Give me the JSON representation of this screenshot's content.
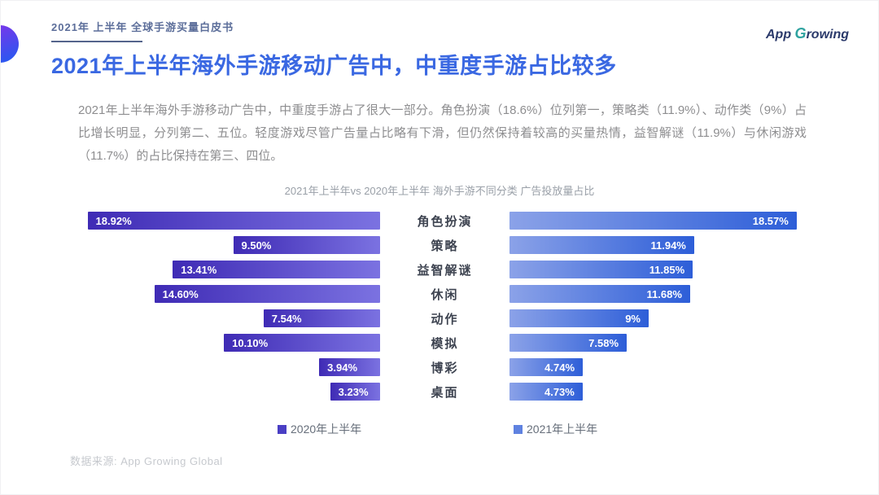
{
  "header": {
    "doc_title": "2021年 上半年 全球手游买量白皮书",
    "page_title": "2021年上半年海外手游移动广告中，中重度手游占比较多",
    "logo": {
      "app": "App",
      "g": "G",
      "rest": "rowing"
    }
  },
  "intro": {
    "text": "2021年上半年海外手游移动广告中，中重度手游占了很大一部分。角色扮演（18.6%）位列第一，策略类（11.9%）、动作类（9%）占比增长明显，分列第二、五位。轻度游戏尽管广告量占比略有下滑，但仍然保持着较高的买量热情，益智解谜（11.9%）与休闲游戏（11.7%）的占比保持在第三、四位。"
  },
  "chart_data": {
    "type": "bar",
    "orientation": "horizontal-tornado",
    "title": "2021年上半年vs 2020年上半年 海外手游不同分类 广告投放量占比",
    "categories": [
      "角色扮演",
      "策略",
      "益智解谜",
      "休闲",
      "动作",
      "模拟",
      "博彩",
      "桌面"
    ],
    "series": [
      {
        "name": "2020年上半年",
        "side": "left",
        "values": [
          18.92,
          9.5,
          13.41,
          14.6,
          7.54,
          10.1,
          3.94,
          3.23
        ],
        "labels": [
          "18.92%",
          "9.50%",
          "13.41%",
          "14.60%",
          "7.54%",
          "10.10%",
          "3.94%",
          "3.23%"
        ],
        "color_start": "#3f2bb5",
        "color_end": "#7b72e1",
        "legend_color": "#4a3fc4"
      },
      {
        "name": "2021年上半年",
        "side": "right",
        "values": [
          18.57,
          11.94,
          11.85,
          11.68,
          9,
          7.58,
          4.74,
          4.73
        ],
        "labels": [
          "18.57%",
          "11.94%",
          "11.85%",
          "11.68%",
          "9%",
          "7.58%",
          "4.74%",
          "4.73%"
        ],
        "color_start": "#8ba2e8",
        "color_end": "#2d5ed8",
        "legend_color": "#5f82e0"
      }
    ],
    "unit": "%",
    "xlim": [
      0,
      19
    ],
    "grid": false,
    "legend_position": "bottom"
  },
  "footer": {
    "source": "数据来源: App Growing Global"
  }
}
